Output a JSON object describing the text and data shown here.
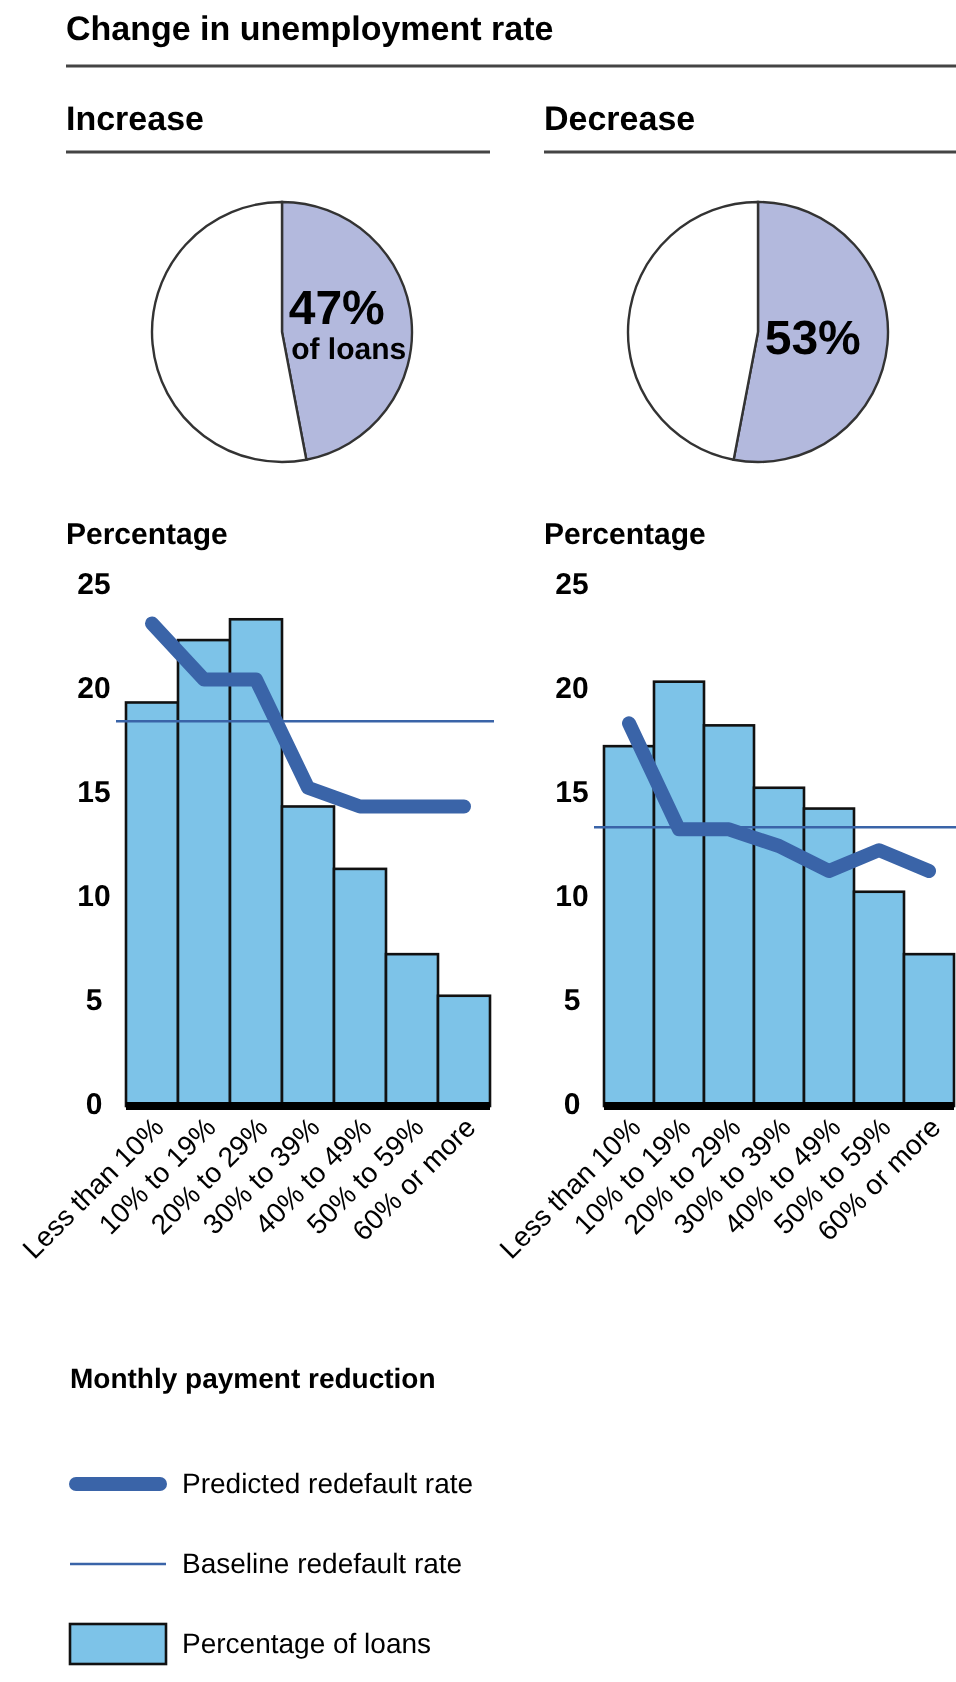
{
  "chart_data": [
    {
      "type": "pie",
      "title": "Change in unemployment rate",
      "subtitle": "Increase",
      "categories": [
        null,
        null
      ],
      "values": [
        47,
        53
      ],
      "colors": [
        "#b3b9dd",
        "#ffffff"
      ],
      "value_labels": [
        "47%",
        null
      ],
      "annotations": [
        "of loans"
      ]
    },
    {
      "type": "pie",
      "subtitle": "Decrease",
      "categories": [
        null,
        null
      ],
      "values": [
        53,
        47
      ],
      "colors": [
        "#b3b9dd",
        "#ffffff"
      ],
      "value_labels": [
        "53%",
        null
      ]
    },
    {
      "type": "bar",
      "ylabel": "Percentage",
      "xlabel": "Monthly payment reduction",
      "categories": [
        "Less than 10%",
        "10% to 19%",
        "20% to 29%",
        "30% to 39%",
        "40% to 49%",
        "50% to 59%",
        "60% or more"
      ],
      "ylim": [
        0,
        25
      ],
      "yticks": [
        0,
        5,
        10,
        15,
        20,
        25
      ],
      "grid": false,
      "legend": "bottom",
      "series": [
        {
          "type": "bar",
          "name": "Percentage of loans",
          "color": "#7dc3e8",
          "values": [
            19.4,
            22.4,
            23.4,
            14.4,
            11.4,
            7.3,
            5.3
          ]
        },
        {
          "type": "line",
          "name": "Predicted redefault rate",
          "color": "#3a64a8",
          "values": [
            23.2,
            20.5,
            20.5,
            15.3,
            14.4,
            14.4,
            14.4
          ]
        }
      ],
      "ref_lines": [
        {
          "axis": "y",
          "value": 18.5,
          "label": "Baseline redefault rate",
          "color": "#3a64a8"
        }
      ]
    },
    {
      "type": "bar",
      "ylabel": "Percentage",
      "categories": [
        "Less than 10%",
        "10% to 19%",
        "20% to 29%",
        "30% to 39%",
        "40% to 49%",
        "50% to 59%",
        "60% or more"
      ],
      "ylim": [
        0,
        25
      ],
      "yticks": [
        0,
        5,
        10,
        15,
        20,
        25
      ],
      "grid": false,
      "series": [
        {
          "type": "bar",
          "color": "#7dc3e8",
          "values": [
            17.3,
            20.4,
            18.3,
            15.3,
            14.3,
            10.3,
            7.3
          ]
        },
        {
          "type": "line",
          "color": "#3a64a8",
          "values": [
            18.4,
            13.3,
            13.3,
            12.5,
            11.3,
            12.3,
            11.3
          ]
        }
      ],
      "ref_lines": [
        {
          "axis": "y",
          "value": 13.4,
          "color": "#3a64a8"
        }
      ]
    }
  ]
}
